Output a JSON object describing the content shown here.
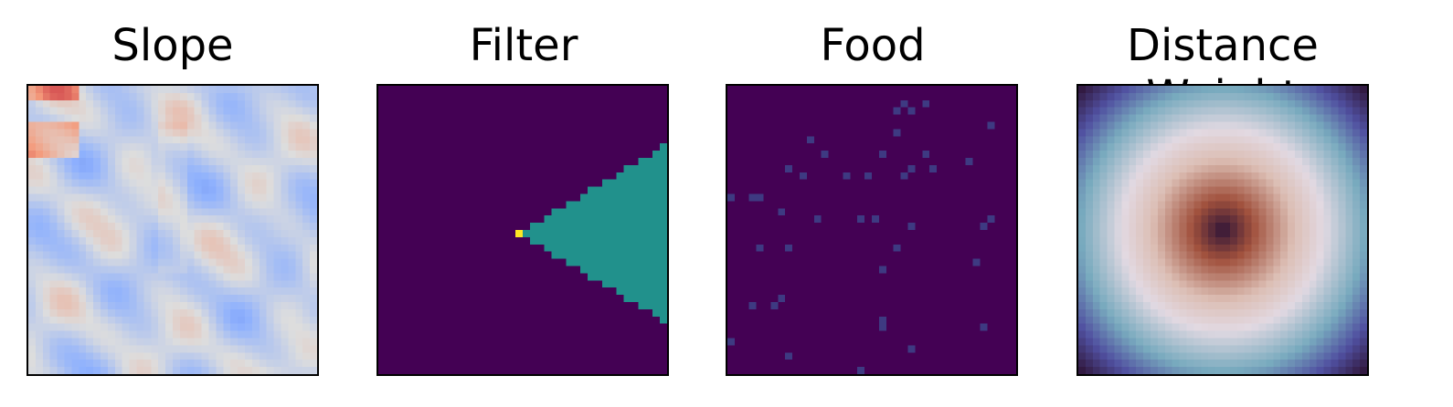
{
  "chart_data": [
    {
      "type": "heatmap",
      "title": "Slope",
      "grid": false,
      "axes": "off",
      "colormap": "coolwarm",
      "resolution": [
        40,
        40
      ],
      "description_values": "low-to-moderate slope values (mostly blue) with two warm patches in the upper-left and diagonal ridges"
    },
    {
      "type": "heatmap",
      "title": "Filter",
      "grid": false,
      "axes": "off",
      "colormap": "viridis",
      "resolution": [
        40,
        40
      ],
      "levels": {
        "background": 0,
        "cone": 0.5,
        "origin": 1
      },
      "origin_cell": [
        20,
        19
      ],
      "cone_direction": "right"
    },
    {
      "type": "heatmap",
      "title": "Food",
      "grid": false,
      "axes": "off",
      "colormap": "viridis",
      "resolution": [
        40,
        40
      ],
      "background_value": 0,
      "food_cells": [
        [
          23,
          3
        ],
        [
          25,
          3
        ],
        [
          27,
          2
        ],
        [
          36,
          5
        ],
        [
          11,
          7
        ],
        [
          23,
          6
        ],
        [
          27,
          9
        ],
        [
          13,
          9
        ],
        [
          21,
          9
        ],
        [
          25,
          11
        ],
        [
          33,
          10
        ],
        [
          10,
          12
        ],
        [
          8,
          11
        ],
        [
          16,
          12
        ],
        [
          19,
          12
        ],
        [
          24,
          12
        ],
        [
          3,
          15
        ],
        [
          0,
          15
        ],
        [
          4,
          15
        ],
        [
          7,
          17
        ],
        [
          12,
          18
        ],
        [
          18,
          18
        ],
        [
          20,
          18
        ],
        [
          25,
          19
        ],
        [
          35,
          19
        ],
        [
          4,
          22
        ],
        [
          8,
          22
        ],
        [
          23,
          22
        ],
        [
          34,
          24
        ],
        [
          21,
          25
        ],
        [
          3,
          30
        ],
        [
          6,
          30
        ],
        [
          7,
          29
        ],
        [
          21,
          32
        ],
        [
          21,
          33
        ],
        [
          25,
          36
        ],
        [
          8,
          37
        ],
        [
          35,
          33
        ],
        [
          18,
          39
        ],
        [
          0,
          35
        ],
        [
          24,
          2
        ],
        [
          28,
          11
        ],
        [
          36,
          18
        ]
      ]
    },
    {
      "type": "heatmap",
      "title": "Distance Weight",
      "grid": false,
      "axes": "off",
      "colormap": "twilight_shifted",
      "resolution": [
        40,
        40
      ],
      "pattern": "radial",
      "center": [
        20,
        20
      ]
    }
  ]
}
